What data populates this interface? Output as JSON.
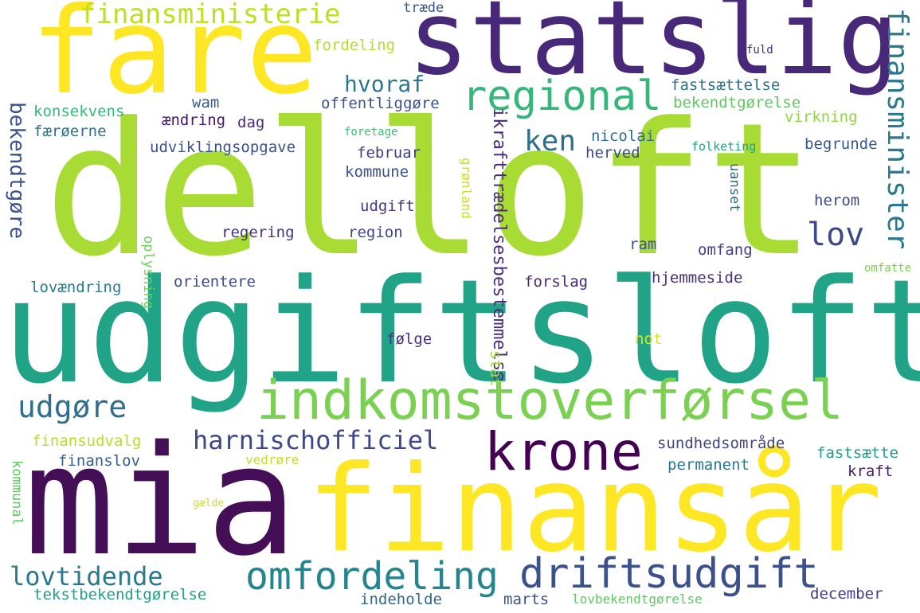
{
  "cloud": {
    "words": [
      {
        "text": "delloft",
        "color": "#a8db34"
      },
      {
        "text": "udgiftsloft",
        "color": "#20a386"
      },
      {
        "text": "mia",
        "color": "#440f57"
      },
      {
        "text": "finansår",
        "color": "#fde724"
      },
      {
        "text": "statslig",
        "color": "#482878"
      },
      {
        "text": "fare",
        "color": "#fde724"
      },
      {
        "text": "indkomstoverførsel",
        "color": "#7ad151"
      },
      {
        "text": "krone",
        "color": "#440154"
      },
      {
        "text": "regional",
        "color": "#35b779"
      },
      {
        "text": "finansministerie",
        "color": "#bddf26"
      },
      {
        "text": "finansminister",
        "color": "#2a788e"
      },
      {
        "text": "omfordeling",
        "color": "#25858e"
      },
      {
        "text": "driftsudgift",
        "color": "#3b518b"
      },
      {
        "text": "harnischofficiel",
        "color": "#3e4989"
      },
      {
        "text": "udgøre",
        "color": "#2e6f8e"
      },
      {
        "text": "lovtidende",
        "color": "#2a788e"
      },
      {
        "text": "lov",
        "color": "#3e4989"
      },
      {
        "text": "ken",
        "color": "#2e6f8e"
      },
      {
        "text": "hvoraf",
        "color": "#2a788e"
      },
      {
        "text": "bekendtgøre",
        "color": "#3b518b"
      },
      {
        "text": "ikrafttrædelsesbestemmelse",
        "color": "#472d7b"
      },
      {
        "text": "tekstbekendtgørelse",
        "color": "#1fa187"
      },
      {
        "text": "indeholde",
        "color": "#31688e"
      },
      {
        "text": "marts",
        "color": "#3b528b"
      },
      {
        "text": "lovbekendtgørelse",
        "color": "#5ec962"
      },
      {
        "text": "december",
        "color": "#433e85"
      },
      {
        "text": "finansudvalg",
        "color": "#b5de2b"
      },
      {
        "text": "finanslov",
        "color": "#355f8d"
      },
      {
        "text": "vedrøre",
        "color": "#c2df23"
      },
      {
        "text": "gælde",
        "color": "#c8e020"
      },
      {
        "text": "kommunal",
        "color": "#5ec962"
      },
      {
        "text": "sundhedsområde",
        "color": "#414487"
      },
      {
        "text": "fastsætte",
        "color": "#1f9e89"
      },
      {
        "text": "permanent",
        "color": "#2a788e"
      },
      {
        "text": "kraft",
        "color": "#481d6f"
      },
      {
        "text": "stat",
        "color": "#9fda3a"
      },
      {
        "text": "følge",
        "color": "#46337e"
      },
      {
        "text": "not",
        "color": "#dde318"
      },
      {
        "text": "forslag",
        "color": "#482575"
      },
      {
        "text": "hjemmeside",
        "color": "#46307e"
      },
      {
        "text": "ram",
        "color": "#3b528b"
      },
      {
        "text": "omfang",
        "color": "#433e85"
      },
      {
        "text": "omfatte",
        "color": "#7ad151"
      },
      {
        "text": "lovændring",
        "color": "#287c8e"
      },
      {
        "text": "orientere",
        "color": "#3e4989"
      },
      {
        "text": "oplysning",
        "color": "#6ece58"
      },
      {
        "text": "regering",
        "color": "#46337e"
      },
      {
        "text": "region",
        "color": "#3f4788"
      },
      {
        "text": "udgift",
        "color": "#443983"
      },
      {
        "text": "grønland",
        "color": "#c5e021"
      },
      {
        "text": "kommune",
        "color": "#3b528b"
      },
      {
        "text": "februar",
        "color": "#433e85"
      },
      {
        "text": "udviklingsopgave",
        "color": "#3b528b"
      },
      {
        "text": "færøerne",
        "color": "#2c718e"
      },
      {
        "text": "konsekvens",
        "color": "#35b779"
      },
      {
        "text": "dag",
        "color": "#472a7a"
      },
      {
        "text": "ændring",
        "color": "#481769"
      },
      {
        "text": "wam",
        "color": "#365c8d"
      },
      {
        "text": "offentliggøre",
        "color": "#3b528b"
      },
      {
        "text": "foretage",
        "color": "#3bbb75"
      },
      {
        "text": "nicolai",
        "color": "#2e6e8e"
      },
      {
        "text": "herved",
        "color": "#3e4989"
      },
      {
        "text": "folketing",
        "color": "#20a386"
      },
      {
        "text": "uanset",
        "color": "#31688e"
      },
      {
        "text": "begrunde",
        "color": "#38598c"
      },
      {
        "text": "herom",
        "color": "#3e4989"
      },
      {
        "text": "fastsættelse",
        "color": "#2c728e"
      },
      {
        "text": "bekendtgørelse",
        "color": "#5ec962"
      },
      {
        "text": "virkning",
        "color": "#8ed645"
      },
      {
        "text": "fordeling",
        "color": "#b5de2b"
      },
      {
        "text": "fuld",
        "color": "#472d7b"
      },
      {
        "text": "træde",
        "color": "#3b528b"
      }
    ]
  }
}
